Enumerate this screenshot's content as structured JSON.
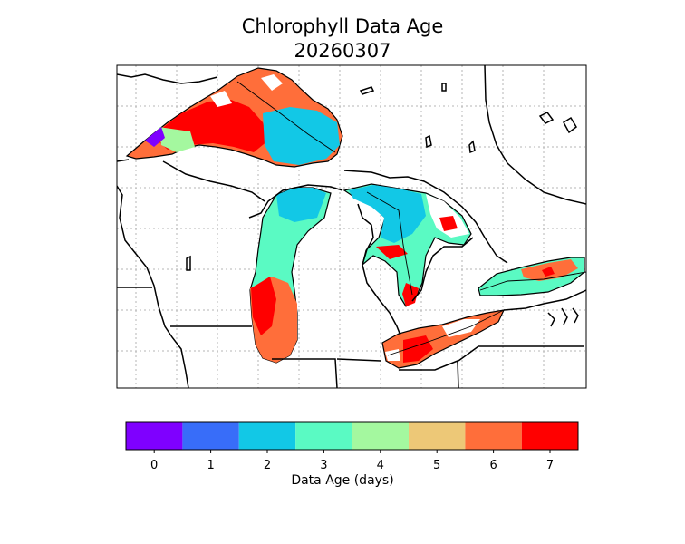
{
  "title_line1": "Chlorophyll Data Age",
  "title_line2": "20260307",
  "colorbar": {
    "label": "Data Age (days)",
    "ticks": [
      "0",
      "1",
      "2",
      "3",
      "4",
      "5",
      "6",
      "7"
    ],
    "colors": [
      "#7f00ff",
      "#386df9",
      "#12c8e6",
      "#5afac3",
      "#a4f89f",
      "#edc877",
      "#ff6e3a",
      "#ff0000"
    ]
  },
  "map": {
    "background": "#ffffff",
    "outline_color": "#000000",
    "grid": true,
    "grid_color": "#b0b0b0",
    "grid_style": "dotted"
  }
}
